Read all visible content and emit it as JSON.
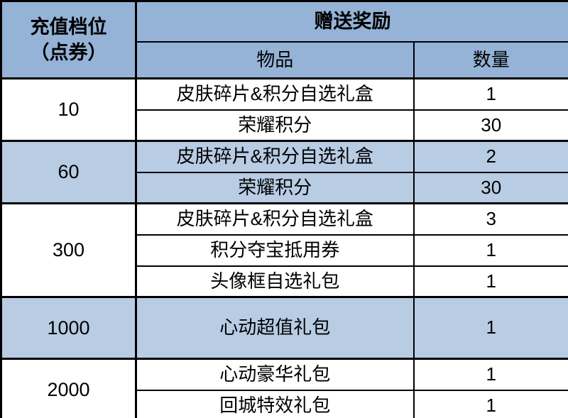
{
  "table": {
    "header": {
      "tier_line1": "充值档位",
      "tier_line2": "（点券）",
      "rewards": "赠送奖励",
      "item": "物品",
      "qty": "数量"
    },
    "groups": [
      {
        "tier": "10",
        "highlight": false,
        "rows": [
          {
            "item": "皮肤碎片&积分自选礼盒",
            "qty": "1"
          },
          {
            "item": "荣耀积分",
            "qty": "30"
          }
        ]
      },
      {
        "tier": "60",
        "highlight": true,
        "rows": [
          {
            "item": "皮肤碎片&积分自选礼盒",
            "qty": "2"
          },
          {
            "item": "荣耀积分",
            "qty": "30"
          }
        ]
      },
      {
        "tier": "300",
        "highlight": false,
        "rows": [
          {
            "item": "皮肤碎片&积分自选礼盒",
            "qty": "3"
          },
          {
            "item": "积分夺宝抵用券",
            "qty": "1"
          },
          {
            "item": "头像框自选礼包",
            "qty": "1"
          }
        ]
      },
      {
        "tier": "1000",
        "highlight": true,
        "rows": [
          {
            "item": "心动超值礼包",
            "qty": "1"
          }
        ]
      },
      {
        "tier": "2000",
        "highlight": false,
        "rows": [
          {
            "item": "心动豪华礼包",
            "qty": "1"
          },
          {
            "item": "回城特效礼包",
            "qty": "1"
          }
        ]
      }
    ],
    "colors": {
      "header_bg": "#95B3D7",
      "highlight_bg": "#B8CCE4",
      "row_bg": "#FFFFFF",
      "border": "#000000",
      "text": "#000000"
    }
  }
}
